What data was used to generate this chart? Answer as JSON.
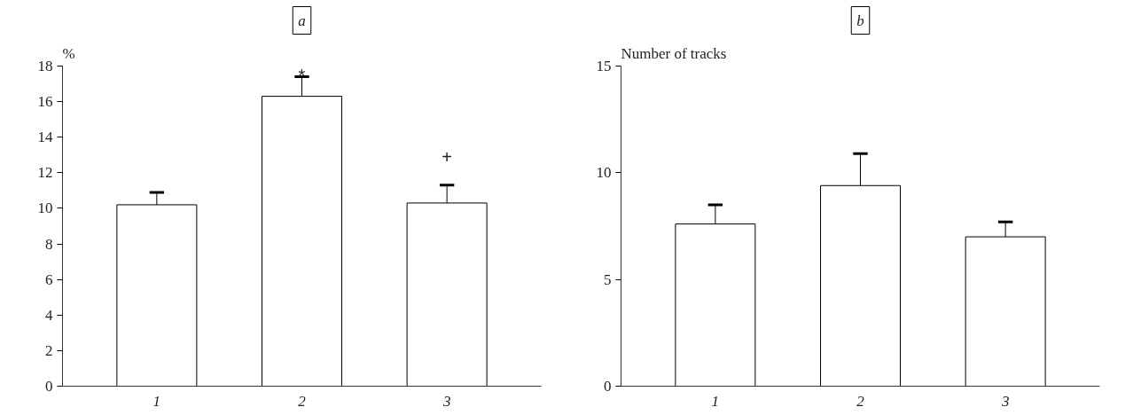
{
  "chart_data": [
    {
      "type": "bar",
      "title": "a",
      "ylabel": "%",
      "categories": [
        "1",
        "2",
        "3"
      ],
      "values": [
        10.2,
        16.3,
        10.3
      ],
      "errors": [
        0.7,
        1.1,
        1.0
      ],
      "color": "#ffffff",
      "ylim": [
        0,
        18
      ],
      "yticks": [
        0,
        2,
        4,
        6,
        8,
        10,
        12,
        14,
        16,
        18
      ],
      "grid": false,
      "annotations": [
        "*",
        "+"
      ]
    },
    {
      "type": "bar",
      "title": "b",
      "ylabel": "Number of tracks",
      "categories": [
        "1",
        "2",
        "3"
      ],
      "values": [
        7.6,
        9.4,
        7.0
      ],
      "errors": [
        0.9,
        1.5,
        0.7
      ],
      "color": "#ffffff",
      "ylim": [
        0,
        15
      ],
      "yticks": [
        0,
        5,
        10,
        15
      ],
      "grid": false
    }
  ]
}
